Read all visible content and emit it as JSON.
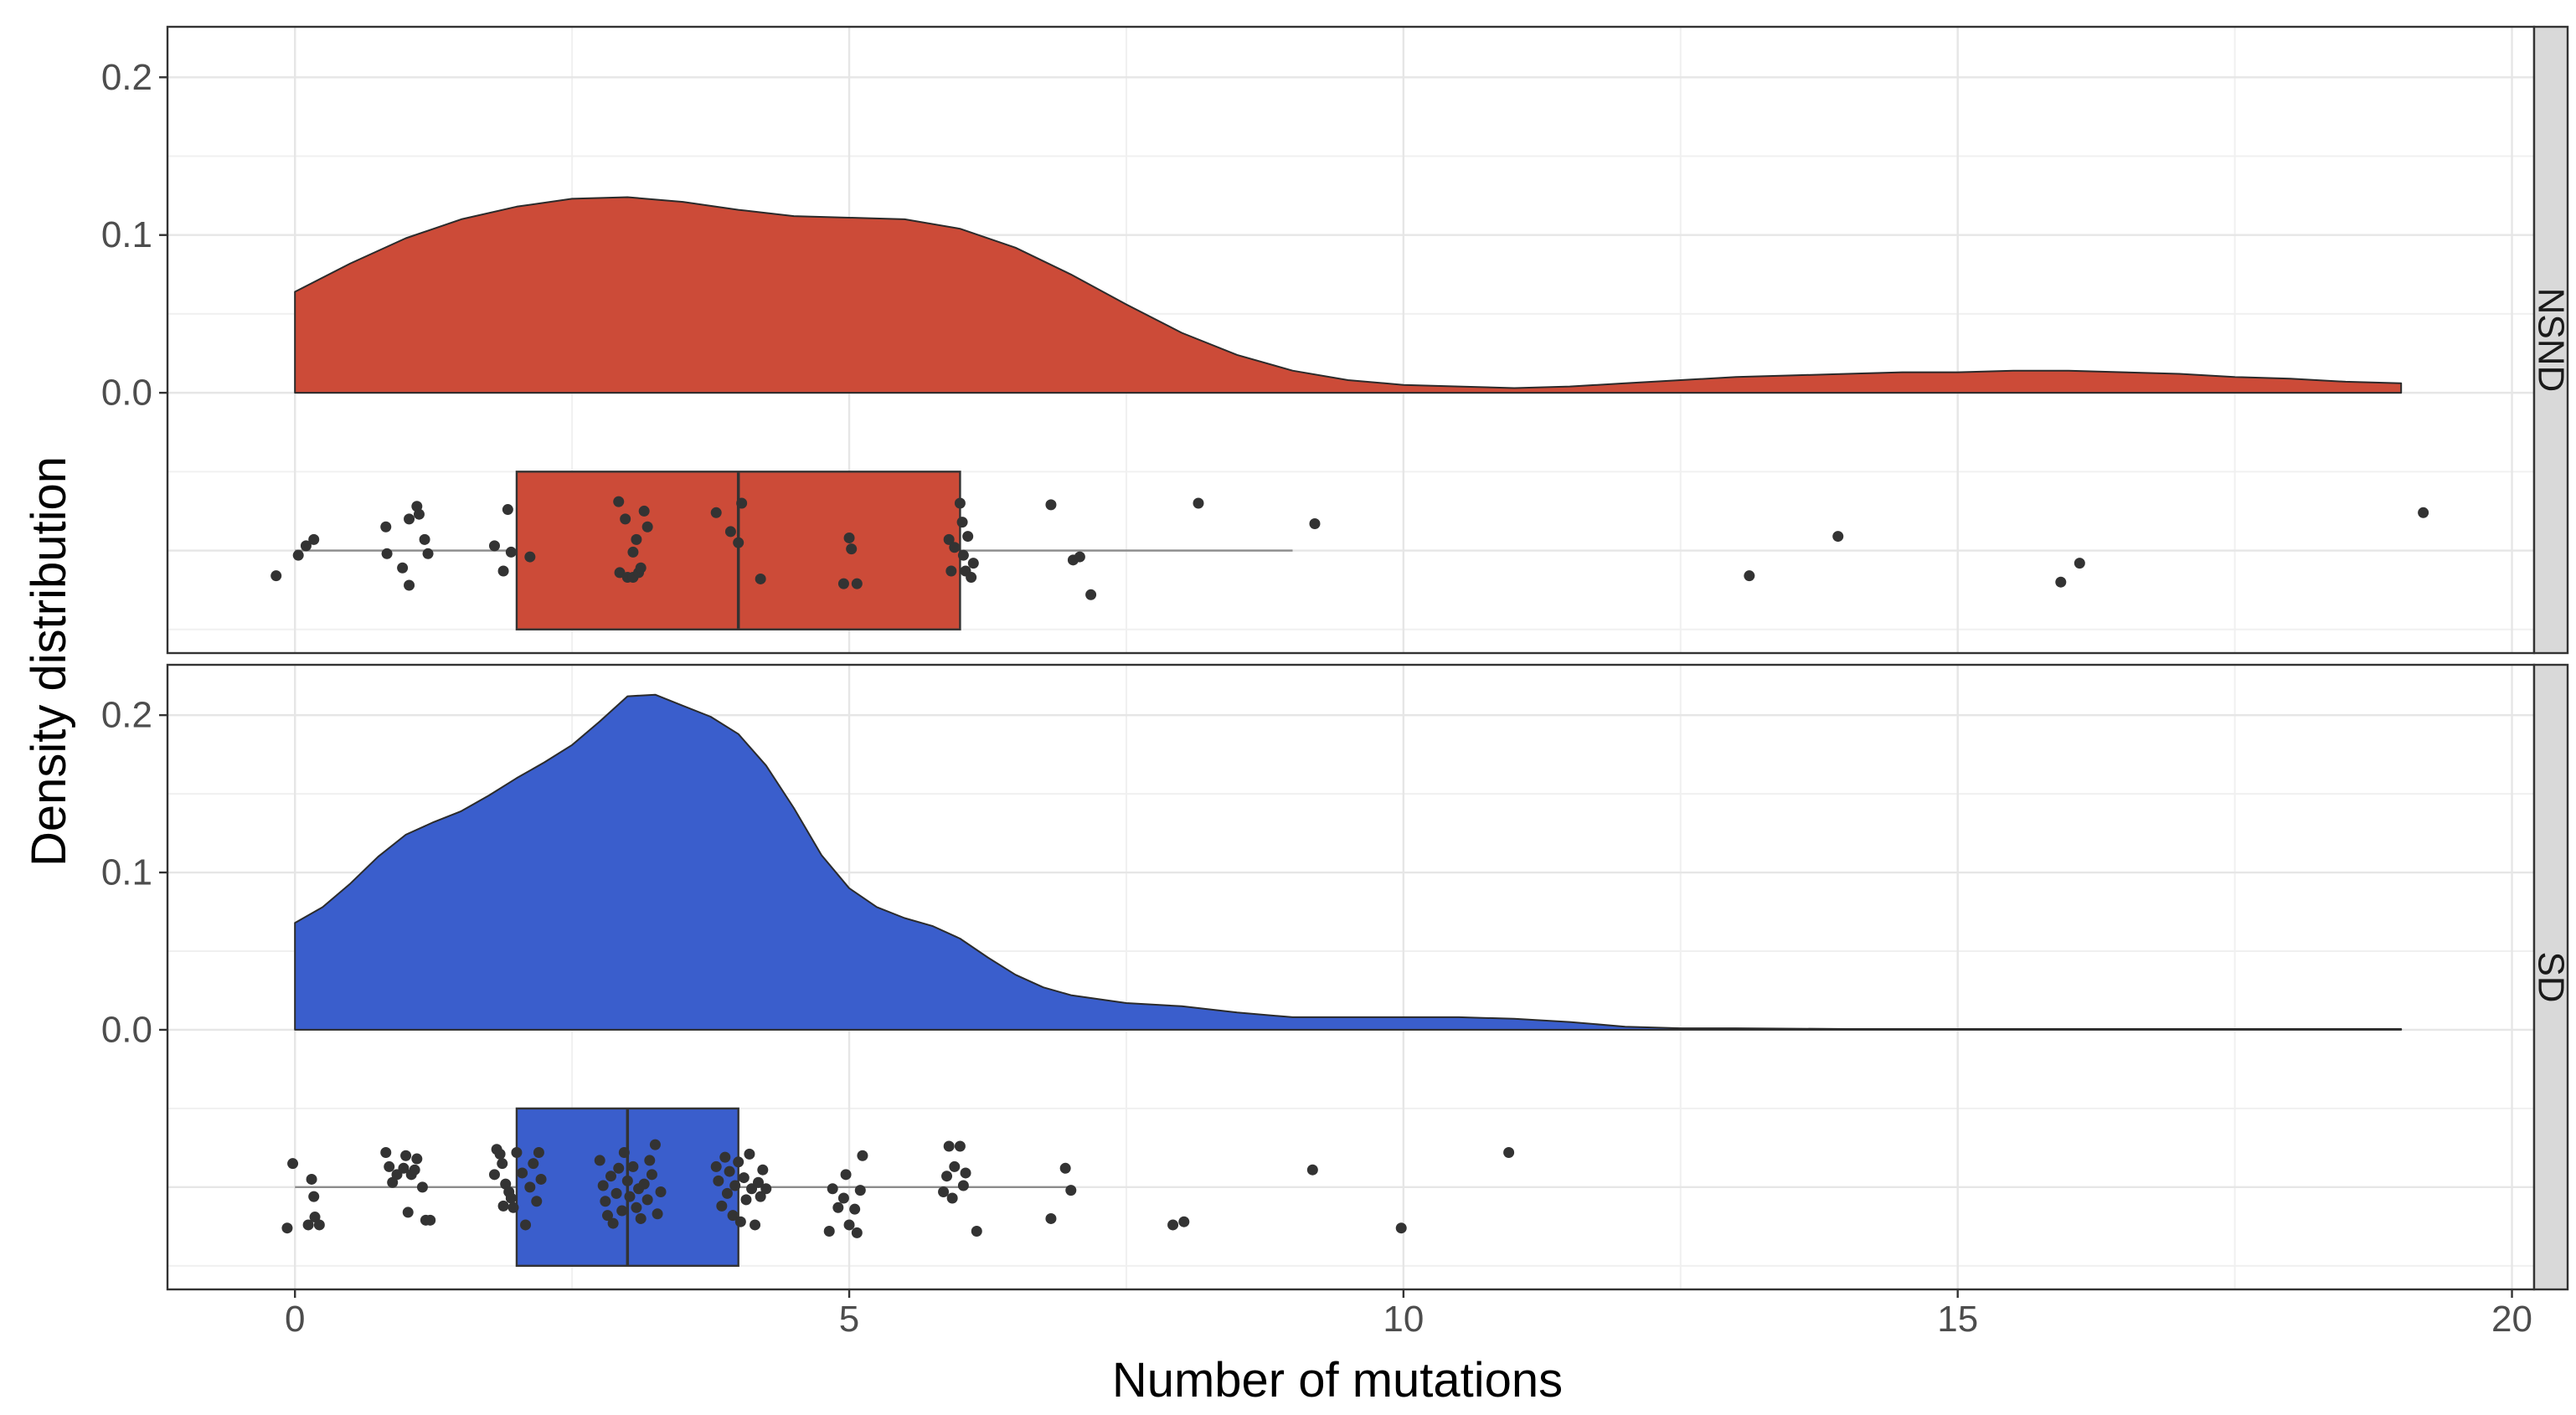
{
  "chart_data": {
    "type": "raincloud",
    "xlabel": "Number of mutations",
    "ylabel": "Density distribution",
    "xlim": [
      -1.15,
      20.2
    ],
    "x_ticks": [
      0,
      5,
      10,
      15,
      20
    ],
    "x_tick_labels": [
      "0",
      "5",
      "10",
      "15",
      "20"
    ],
    "y_ticks": [
      0.0,
      0.1,
      0.2
    ],
    "y_tick_labels": [
      "0.0",
      "0.1",
      "0.2"
    ],
    "grid": true,
    "panels": [
      {
        "label": "NSND",
        "color": "#cc4b38",
        "ylim": [
          -0.165,
          0.232
        ],
        "density": {
          "x": [
            0,
            0.5,
            1,
            1.5,
            2,
            2.5,
            3,
            3.5,
            4,
            4.5,
            5,
            5.5,
            6,
            6.5,
            7,
            7.5,
            8,
            8.5,
            9,
            9.5,
            10,
            10.5,
            11,
            11.5,
            12,
            12.5,
            13,
            13.5,
            14,
            14.5,
            15,
            15.5,
            16,
            16.5,
            17,
            17.5,
            18,
            18.5,
            19
          ],
          "y": [
            0.064,
            0.082,
            0.098,
            0.11,
            0.118,
            0.123,
            0.124,
            0.121,
            0.116,
            0.112,
            0.111,
            0.11,
            0.104,
            0.092,
            0.075,
            0.056,
            0.038,
            0.024,
            0.014,
            0.008,
            0.005,
            0.004,
            0.003,
            0.004,
            0.006,
            0.008,
            0.01,
            0.011,
            0.012,
            0.013,
            0.013,
            0.014,
            0.014,
            0.013,
            0.012,
            0.01,
            0.009,
            0.007,
            0.006
          ]
        },
        "boxplot": {
          "lower_whisker": 0,
          "q1": 2,
          "median": 4,
          "q3": 6,
          "upper_whisker": 9
        },
        "points": [
          {
            "x": -0.17,
            "y": -0.116
          },
          {
            "x": 0.03,
            "y": -0.103
          },
          {
            "x": 0.1,
            "y": -0.097
          },
          {
            "x": 0.17,
            "y": -0.093
          },
          {
            "x": 0.82,
            "y": -0.085
          },
          {
            "x": 0.83,
            "y": -0.102
          },
          {
            "x": 0.97,
            "y": -0.111
          },
          {
            "x": 1.03,
            "y": -0.08
          },
          {
            "x": 1.03,
            "y": -0.122
          },
          {
            "x": 1.1,
            "y": -0.072
          },
          {
            "x": 1.12,
            "y": -0.077
          },
          {
            "x": 1.17,
            "y": -0.093
          },
          {
            "x": 1.2,
            "y": -0.102
          },
          {
            "x": 1.8,
            "y": -0.097
          },
          {
            "x": 1.88,
            "y": -0.113
          },
          {
            "x": 1.92,
            "y": -0.074
          },
          {
            "x": 1.95,
            "y": -0.101
          },
          {
            "x": 2.12,
            "y": -0.104
          },
          {
            "x": 2.92,
            "y": -0.069
          },
          {
            "x": 2.93,
            "y": -0.114
          },
          {
            "x": 2.98,
            "y": -0.08
          },
          {
            "x": 3.0,
            "y": -0.117
          },
          {
            "x": 3.05,
            "y": -0.101
          },
          {
            "x": 3.05,
            "y": -0.117
          },
          {
            "x": 3.08,
            "y": -0.093
          },
          {
            "x": 3.1,
            "y": -0.114
          },
          {
            "x": 3.12,
            "y": -0.111
          },
          {
            "x": 3.15,
            "y": -0.075
          },
          {
            "x": 3.18,
            "y": -0.085
          },
          {
            "x": 3.8,
            "y": -0.076
          },
          {
            "x": 3.93,
            "y": -0.088
          },
          {
            "x": 4.0,
            "y": -0.095
          },
          {
            "x": 4.03,
            "y": -0.07
          },
          {
            "x": 4.2,
            "y": -0.118
          },
          {
            "x": 4.95,
            "y": -0.121
          },
          {
            "x": 5.0,
            "y": -0.092
          },
          {
            "x": 5.02,
            "y": -0.099
          },
          {
            "x": 5.07,
            "y": -0.121
          },
          {
            "x": 5.9,
            "y": -0.093
          },
          {
            "x": 5.92,
            "y": -0.113
          },
          {
            "x": 5.95,
            "y": -0.098
          },
          {
            "x": 6.0,
            "y": -0.07
          },
          {
            "x": 6.02,
            "y": -0.082
          },
          {
            "x": 6.03,
            "y": -0.103
          },
          {
            "x": 6.05,
            "y": -0.113
          },
          {
            "x": 6.07,
            "y": -0.091
          },
          {
            "x": 6.1,
            "y": -0.117
          },
          {
            "x": 6.12,
            "y": -0.108
          },
          {
            "x": 6.82,
            "y": -0.071
          },
          {
            "x": 7.02,
            "y": -0.106
          },
          {
            "x": 7.08,
            "y": -0.104
          },
          {
            "x": 7.18,
            "y": -0.128
          },
          {
            "x": 8.15,
            "y": -0.07
          },
          {
            "x": 9.2,
            "y": -0.083
          },
          {
            "x": 13.12,
            "y": -0.116
          },
          {
            "x": 13.92,
            "y": -0.091
          },
          {
            "x": 15.93,
            "y": -0.12
          },
          {
            "x": 16.1,
            "y": -0.108
          },
          {
            "x": 19.2,
            "y": -0.076
          }
        ]
      },
      {
        "label": "SD",
        "color": "#3a5ecc",
        "ylim": [
          -0.165,
          0.232
        ],
        "density": {
          "x": [
            0,
            0.25,
            0.5,
            0.75,
            1,
            1.25,
            1.5,
            1.75,
            2,
            2.25,
            2.5,
            2.75,
            3,
            3.25,
            3.5,
            3.75,
            4,
            4.25,
            4.5,
            4.75,
            5,
            5.25,
            5.5,
            5.75,
            6,
            6.25,
            6.5,
            6.75,
            7,
            7.5,
            8,
            8.5,
            9,
            9.5,
            10,
            10.5,
            11,
            11.5,
            12,
            12.5,
            13,
            14,
            15,
            16,
            17,
            18,
            19
          ],
          "y": [
            0.068,
            0.078,
            0.093,
            0.11,
            0.124,
            0.132,
            0.139,
            0.149,
            0.16,
            0.17,
            0.181,
            0.196,
            0.212,
            0.213,
            0.206,
            0.199,
            0.188,
            0.168,
            0.141,
            0.111,
            0.09,
            0.078,
            0.071,
            0.066,
            0.058,
            0.046,
            0.035,
            0.027,
            0.022,
            0.017,
            0.015,
            0.011,
            0.008,
            0.008,
            0.008,
            0.008,
            0.007,
            0.005,
            0.002,
            0.001,
            0.001,
            0.0005,
            0.0005,
            0.0005,
            0.0005,
            0.0005,
            0.0005
          ]
        },
        "boxplot": {
          "lower_whisker": 0,
          "q1": 2,
          "median": 3,
          "q3": 4,
          "upper_whisker": 7
        },
        "points": [
          {
            "x": -0.07,
            "y": -0.126
          },
          {
            "x": -0.02,
            "y": -0.085
          },
          {
            "x": 0.12,
            "y": -0.124
          },
          {
            "x": 0.15,
            "y": -0.095
          },
          {
            "x": 0.17,
            "y": -0.106
          },
          {
            "x": 0.18,
            "y": -0.119
          },
          {
            "x": 0.22,
            "y": -0.124
          },
          {
            "x": 0.82,
            "y": -0.078
          },
          {
            "x": 0.85,
            "y": -0.087
          },
          {
            "x": 0.88,
            "y": -0.097
          },
          {
            "x": 0.92,
            "y": -0.092
          },
          {
            "x": 0.98,
            "y": -0.088
          },
          {
            "x": 1.0,
            "y": -0.08
          },
          {
            "x": 1.02,
            "y": -0.116
          },
          {
            "x": 1.05,
            "y": -0.092
          },
          {
            "x": 1.08,
            "y": -0.089
          },
          {
            "x": 1.1,
            "y": -0.082
          },
          {
            "x": 1.15,
            "y": -0.1
          },
          {
            "x": 1.18,
            "y": -0.121
          },
          {
            "x": 1.22,
            "y": -0.121
          },
          {
            "x": 1.8,
            "y": -0.092
          },
          {
            "x": 1.82,
            "y": -0.076
          },
          {
            "x": 1.85,
            "y": -0.079
          },
          {
            "x": 1.87,
            "y": -0.085
          },
          {
            "x": 1.88,
            "y": -0.112
          },
          {
            "x": 1.9,
            "y": -0.098
          },
          {
            "x": 1.93,
            "y": -0.103
          },
          {
            "x": 1.95,
            "y": -0.107
          },
          {
            "x": 1.97,
            "y": -0.113
          },
          {
            "x": 2.0,
            "y": -0.078
          },
          {
            "x": 2.05,
            "y": -0.091
          },
          {
            "x": 2.08,
            "y": -0.124
          },
          {
            "x": 2.12,
            "y": -0.1
          },
          {
            "x": 2.15,
            "y": -0.085
          },
          {
            "x": 2.18,
            "y": -0.109
          },
          {
            "x": 2.2,
            "y": -0.078
          },
          {
            "x": 2.22,
            "y": -0.095
          },
          {
            "x": 2.75,
            "y": -0.083
          },
          {
            "x": 2.78,
            "y": -0.099
          },
          {
            "x": 2.8,
            "y": -0.109
          },
          {
            "x": 2.82,
            "y": -0.118
          },
          {
            "x": 2.85,
            "y": -0.093
          },
          {
            "x": 2.87,
            "y": -0.123
          },
          {
            "x": 2.9,
            "y": -0.104
          },
          {
            "x": 2.92,
            "y": -0.088
          },
          {
            "x": 2.95,
            "y": -0.115
          },
          {
            "x": 2.97,
            "y": -0.078
          },
          {
            "x": 3.0,
            "y": -0.096
          },
          {
            "x": 3.02,
            "y": -0.106
          },
          {
            "x": 3.05,
            "y": -0.087
          },
          {
            "x": 3.08,
            "y": -0.113
          },
          {
            "x": 3.1,
            "y": -0.101
          },
          {
            "x": 3.12,
            "y": -0.12
          },
          {
            "x": 3.15,
            "y": -0.098
          },
          {
            "x": 3.18,
            "y": -0.108
          },
          {
            "x": 3.2,
            "y": -0.083
          },
          {
            "x": 3.22,
            "y": -0.092
          },
          {
            "x": 3.25,
            "y": -0.073
          },
          {
            "x": 3.27,
            "y": -0.117
          },
          {
            "x": 3.3,
            "y": -0.103
          },
          {
            "x": 3.8,
            "y": -0.087
          },
          {
            "x": 3.82,
            "y": -0.096
          },
          {
            "x": 3.85,
            "y": -0.112
          },
          {
            "x": 3.88,
            "y": -0.081
          },
          {
            "x": 3.9,
            "y": -0.104
          },
          {
            "x": 3.92,
            "y": -0.09
          },
          {
            "x": 3.95,
            "y": -0.118
          },
          {
            "x": 3.97,
            "y": -0.099
          },
          {
            "x": 4.0,
            "y": -0.084
          },
          {
            "x": 4.02,
            "y": -0.122
          },
          {
            "x": 4.05,
            "y": -0.094
          },
          {
            "x": 4.07,
            "y": -0.108
          },
          {
            "x": 4.1,
            "y": -0.079
          },
          {
            "x": 4.12,
            "y": -0.101
          },
          {
            "x": 4.15,
            "y": -0.124
          },
          {
            "x": 4.18,
            "y": -0.097
          },
          {
            "x": 4.2,
            "y": -0.106
          },
          {
            "x": 4.22,
            "y": -0.089
          },
          {
            "x": 4.25,
            "y": -0.101
          },
          {
            "x": 4.82,
            "y": -0.128
          },
          {
            "x": 4.85,
            "y": -0.101
          },
          {
            "x": 4.9,
            "y": -0.113
          },
          {
            "x": 4.95,
            "y": -0.107
          },
          {
            "x": 4.97,
            "y": -0.092
          },
          {
            "x": 5.0,
            "y": -0.124
          },
          {
            "x": 5.05,
            "y": -0.114
          },
          {
            "x": 5.07,
            "y": -0.129
          },
          {
            "x": 5.1,
            "y": -0.102
          },
          {
            "x": 5.12,
            "y": -0.08
          },
          {
            "x": 5.85,
            "y": -0.103
          },
          {
            "x": 5.88,
            "y": -0.093
          },
          {
            "x": 5.9,
            "y": -0.074
          },
          {
            "x": 5.93,
            "y": -0.107
          },
          {
            "x": 5.95,
            "y": -0.087
          },
          {
            "x": 6.0,
            "y": -0.074
          },
          {
            "x": 6.03,
            "y": -0.099
          },
          {
            "x": 6.05,
            "y": -0.091
          },
          {
            "x": 6.15,
            "y": -0.128
          },
          {
            "x": 6.82,
            "y": -0.12
          },
          {
            "x": 6.95,
            "y": -0.088
          },
          {
            "x": 7.0,
            "y": -0.102
          },
          {
            "x": 7.92,
            "y": -0.124
          },
          {
            "x": 8.02,
            "y": -0.122
          },
          {
            "x": 9.18,
            "y": -0.089
          },
          {
            "x": 9.98,
            "y": -0.126
          },
          {
            "x": 10.95,
            "y": -0.078
          }
        ]
      }
    ]
  }
}
